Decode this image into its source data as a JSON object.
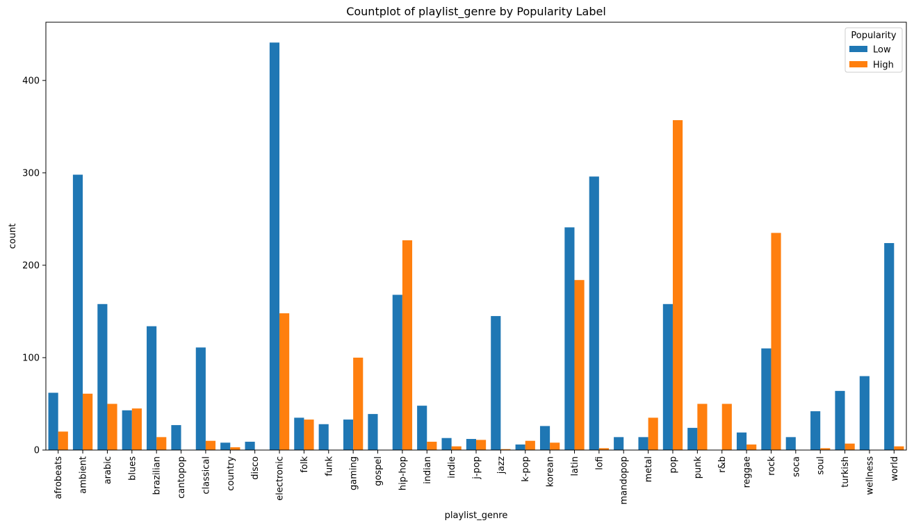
{
  "chart_data": {
    "type": "bar",
    "title": "Countplot of playlist_genre by Popularity Label",
    "xlabel": "playlist_genre",
    "ylabel": "count",
    "ylim": [
      0,
      463
    ],
    "yticks": [
      0,
      100,
      200,
      300,
      400
    ],
    "grid": false,
    "legend": {
      "title": "Popularity",
      "placement": "top-right"
    },
    "categories": [
      "afrobeats",
      "ambient",
      "arabic",
      "blues",
      "brazilian",
      "cantopop",
      "classical",
      "country",
      "disco",
      "electronic",
      "folk",
      "funk",
      "gaming",
      "gospel",
      "hip-hop",
      "indian",
      "indie",
      "j-pop",
      "jazz",
      "k-pop",
      "korean",
      "latin",
      "lofi",
      "mandopop",
      "metal",
      "pop",
      "punk",
      "r&b",
      "reggae",
      "rock",
      "soca",
      "soul",
      "turkish",
      "wellness",
      "world"
    ],
    "series": [
      {
        "name": "Low",
        "color": "#1f77b4",
        "values": [
          62,
          298,
          158,
          43,
          134,
          27,
          111,
          8,
          9,
          441,
          35,
          28,
          33,
          39,
          168,
          48,
          13,
          12,
          145,
          6,
          26,
          241,
          296,
          14,
          14,
          158,
          24,
          0,
          19,
          110,
          14,
          42,
          64,
          80,
          224
        ]
      },
      {
        "name": "High",
        "color": "#ff7f0e",
        "values": [
          20,
          61,
          50,
          45,
          14,
          0,
          10,
          3,
          0,
          148,
          33,
          0,
          100,
          0,
          227,
          9,
          4,
          11,
          1,
          10,
          8,
          184,
          2,
          0,
          35,
          357,
          50,
          50,
          6,
          235,
          0,
          2,
          7,
          0,
          4
        ]
      }
    ]
  }
}
